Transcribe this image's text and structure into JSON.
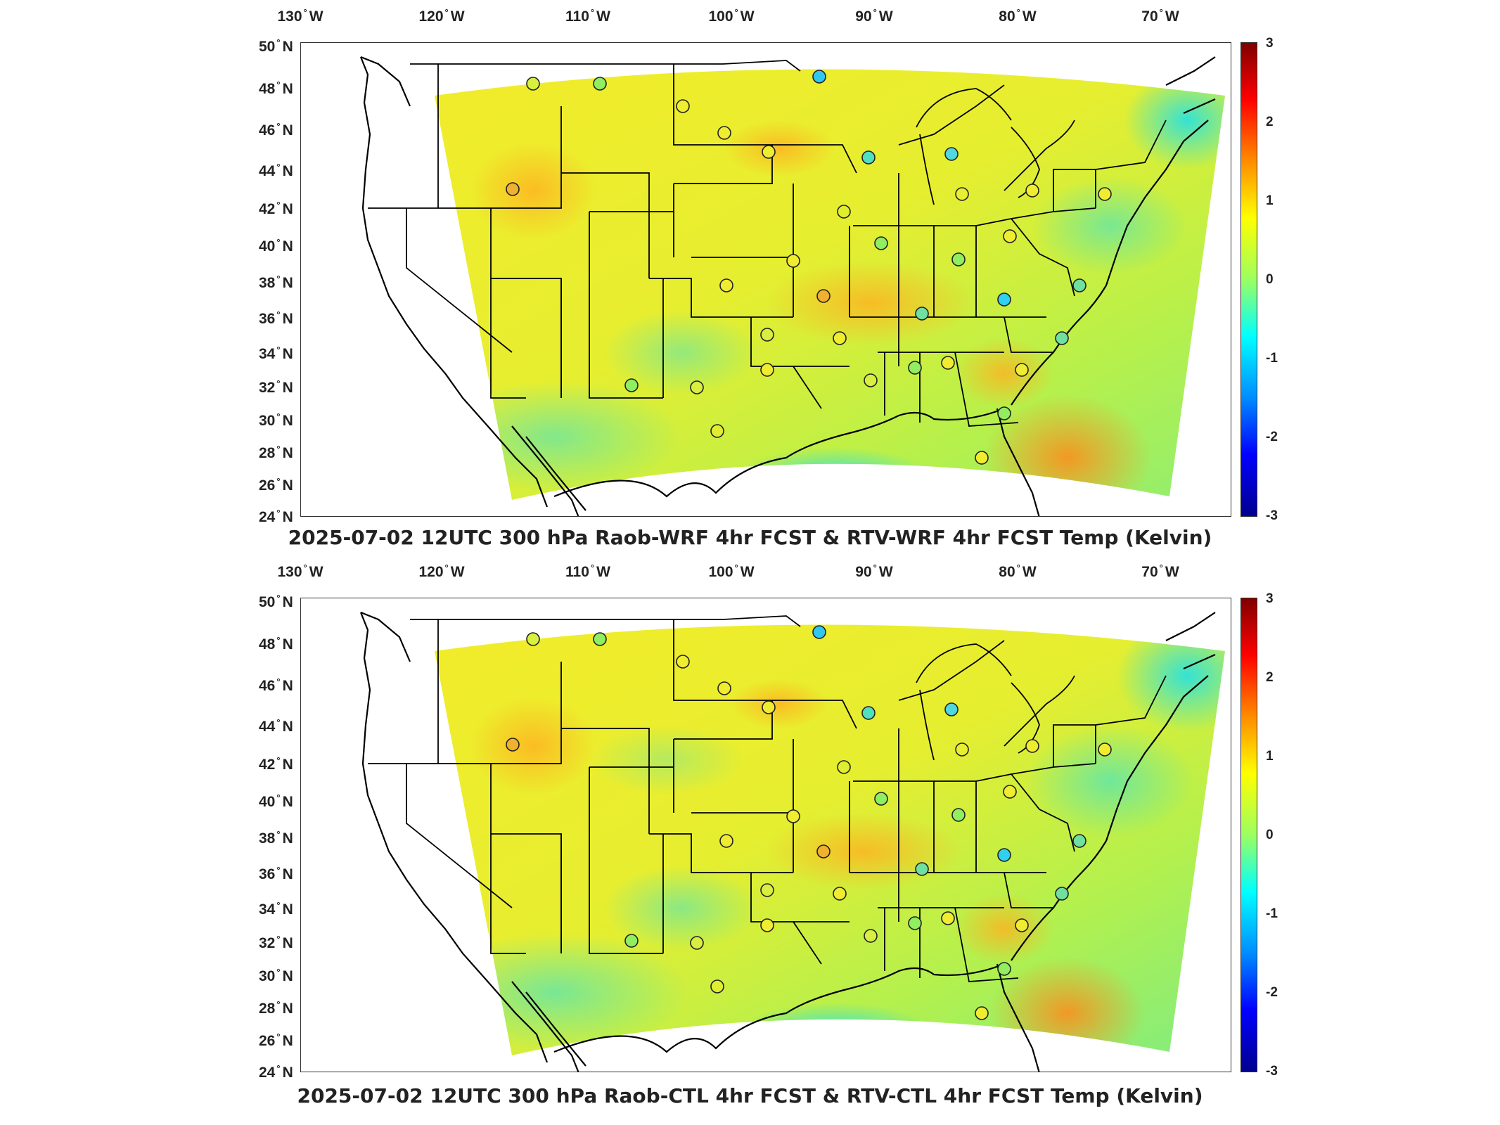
{
  "panels": [
    {
      "title": "2025-07-02 12UTC 300 hPa Raob-WRF 4hr FCST & RTV-WRF 4hr FCST Temp (Kelvin)"
    },
    {
      "title": "2025-07-02 12UTC 300 hPa Raob-CTL 4hr FCST & RTV-CTL 4hr FCST Temp (Kelvin)"
    }
  ],
  "map": {
    "lon_ticks": [
      "130",
      "120",
      "110",
      "100",
      "90",
      "80",
      "70"
    ],
    "lon_suffix": "W",
    "lat_ticks": [
      "50",
      "48",
      "46",
      "44",
      "42",
      "40",
      "38",
      "36",
      "34",
      "32",
      "30",
      "28",
      "26",
      "24"
    ],
    "lat_suffix": "N",
    "degree_symbol": "°"
  },
  "colorbar": {
    "ticks": [
      "3",
      "2",
      "1",
      "0",
      "-1",
      "-2",
      "-3"
    ],
    "colors": [
      "#800000",
      "#ff0000",
      "#ff8c00",
      "#ffff00",
      "#9cff60",
      "#00ffff",
      "#008cff",
      "#0000ff",
      "#00008f"
    ]
  }
}
